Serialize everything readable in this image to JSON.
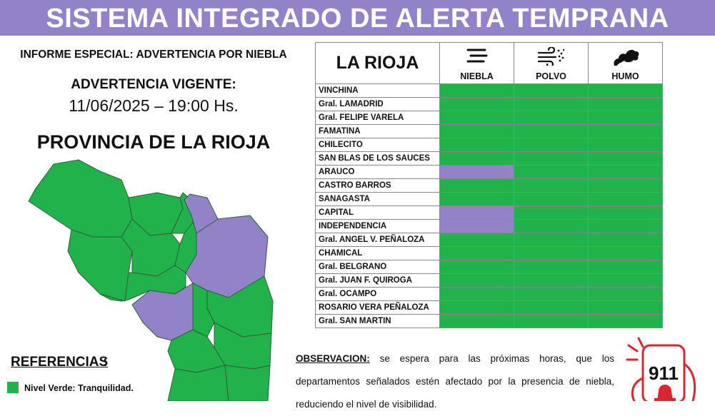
{
  "header": {
    "title": "SISTEMA INTEGRADO DE ALERTA TEMPRANA"
  },
  "report": {
    "subtitle": "INFORME ESPECIAL: ADVERTENCIA POR NIEBLA",
    "advisory_label": "ADVERTENCIA VIGENTE:",
    "advisory_datetime": "11/06/2025 – 19:00 Hs.",
    "province_title": "PROVINCIA DE LA RIOJA"
  },
  "references": {
    "title": "REFERENCIAS",
    "items": [
      {
        "label": "Nivel Verde: Tranquilidad.",
        "color": "#22b24c"
      }
    ]
  },
  "table": {
    "region_header": "LA RIOJA",
    "columns": [
      {
        "label": "NIEBLA",
        "icon": "fog-icon"
      },
      {
        "label": "POLVO",
        "icon": "dust-wind-icon"
      },
      {
        "label": "HUMO",
        "icon": "smoke-icon"
      }
    ],
    "colors": {
      "green": "#22b24c",
      "purple": "#9283c8"
    },
    "rows": [
      {
        "name": "VINCHINA",
        "levels": [
          "green",
          "green",
          "green"
        ]
      },
      {
        "name": "Gral. LAMADRID",
        "levels": [
          "green",
          "green",
          "green"
        ]
      },
      {
        "name": "Gral. FELIPE VARELA",
        "levels": [
          "green",
          "green",
          "green"
        ]
      },
      {
        "name": "FAMATINA",
        "levels": [
          "green",
          "green",
          "green"
        ]
      },
      {
        "name": "CHILECITO",
        "levels": [
          "green",
          "green",
          "green"
        ]
      },
      {
        "name": "SAN BLAS DE LOS SAUCES",
        "levels": [
          "green",
          "green",
          "green"
        ]
      },
      {
        "name": "ARAUCO",
        "levels": [
          "purple",
          "green",
          "green"
        ]
      },
      {
        "name": "CASTRO BARROS",
        "levels": [
          "green",
          "green",
          "green"
        ]
      },
      {
        "name": "SANAGASTA",
        "levels": [
          "green",
          "green",
          "green"
        ]
      },
      {
        "name": "CAPITAL",
        "levels": [
          "purple",
          "green",
          "green"
        ]
      },
      {
        "name": "INDEPENDENCIA",
        "levels": [
          "purple",
          "green",
          "green"
        ]
      },
      {
        "name": "Gral. ANGEL V. PEÑALOZA",
        "levels": [
          "green",
          "green",
          "green"
        ]
      },
      {
        "name": "CHAMICAL",
        "levels": [
          "green",
          "green",
          "green"
        ]
      },
      {
        "name": "Gral. BELGRANO",
        "levels": [
          "green",
          "green",
          "green"
        ]
      },
      {
        "name": "Gral. JUAN F. QUIROGA",
        "levels": [
          "green",
          "green",
          "green"
        ]
      },
      {
        "name": "Gral. OCAMPO",
        "levels": [
          "green",
          "green",
          "green"
        ]
      },
      {
        "name": "ROSARIO VERA PEÑALOZA",
        "levels": [
          "green",
          "green",
          "green"
        ]
      },
      {
        "name": "Gral. SAN MARTIN",
        "levels": [
          "green",
          "green",
          "green"
        ]
      }
    ]
  },
  "observation": {
    "label": "OBSERVACION:",
    "text": "se espera para las próximas horas, que los departamentos señalados estén afectado por la presencia de niebla, reduciendo el nivel de visibilidad."
  },
  "logo": {
    "text": "911",
    "icon": "emergency-911-logo-icon"
  }
}
